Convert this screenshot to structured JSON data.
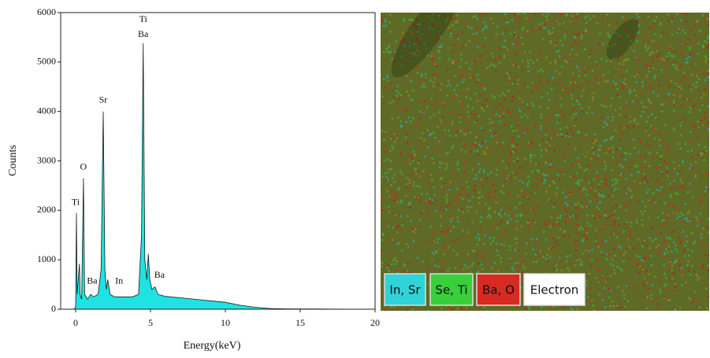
{
  "chart_data": {
    "type": "area",
    "color": "#1fe3e3",
    "line_color": "#1a1a1a",
    "x_label": "Energy(keV)",
    "y_label": "Counts",
    "x": [
      -0.1,
      0,
      0.05,
      0.1,
      0.25,
      0.3,
      0.4,
      0.52,
      0.6,
      0.8,
      1.0,
      1.2,
      1.5,
      1.7,
      1.84,
      1.95,
      2.05,
      2.15,
      2.3,
      2.6,
      3.0,
      3.4,
      3.8,
      4.2,
      4.4,
      4.51,
      4.62,
      4.75,
      4.85,
      4.95,
      5.1,
      5.3,
      5.5,
      6,
      7,
      8,
      9,
      10,
      11,
      12,
      13,
      14,
      16,
      18,
      20
    ],
    "values": [
      0,
      50,
      1950,
      300,
      920,
      300,
      200,
      2650,
      300,
      200,
      300,
      250,
      300,
      800,
      4000,
      800,
      400,
      600,
      300,
      250,
      250,
      250,
      250,
      300,
      1500,
      5380,
      1000,
      600,
      1120,
      600,
      400,
      450,
      300,
      260,
      230,
      200,
      170,
      140,
      80,
      40,
      15,
      8,
      4,
      2,
      0
    ],
    "xlim": [
      -1,
      20
    ],
    "xticks": [
      0,
      5,
      10,
      15,
      20
    ],
    "ylim": [
      0,
      6000
    ],
    "yticks": [
      0,
      1000,
      2000,
      3000,
      4000,
      5000,
      6000
    ],
    "annotations": [
      {
        "text": "Ti",
        "x": 0.0,
        "y": 2150
      },
      {
        "text": "O",
        "x": 0.52,
        "y": 2870
      },
      {
        "text": "Ba",
        "x": 1.1,
        "y": 560
      },
      {
        "text": "In",
        "x": 2.9,
        "y": 560
      },
      {
        "text": "Sr",
        "x": 1.84,
        "y": 4220
      },
      {
        "text": "Ti",
        "x": 4.51,
        "y": 5850
      },
      {
        "text": "Ba",
        "x": 4.51,
        "y": 5550
      },
      {
        "text": "Ba",
        "x": 5.6,
        "y": 680
      }
    ]
  },
  "map_legend": [
    "In, Sr",
    "Se, Ti",
    "Ba, O",
    "Electron"
  ]
}
